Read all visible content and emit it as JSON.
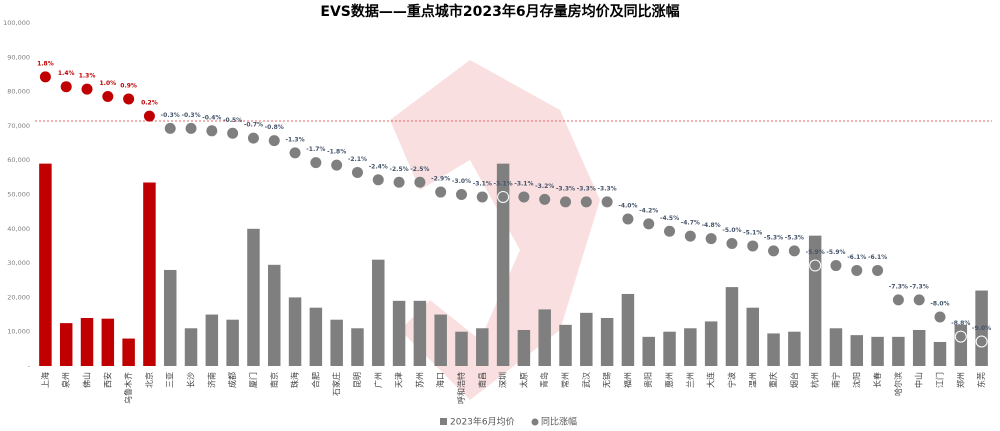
{
  "chart_data": {
    "type": "bar",
    "title": "EVS数据——重点城市2023年6月存量房均价及同比涨幅",
    "categories": [
      "上海",
      "泉州",
      "佛山",
      "西安",
      "乌鲁木齐",
      "北京",
      "三亚",
      "长沙",
      "济南",
      "成都",
      "厦门",
      "南京",
      "珠海",
      "合肥",
      "石家庄",
      "昆明",
      "广州",
      "天津",
      "苏州",
      "海口",
      "呼和浩特",
      "南昌",
      "深圳",
      "太原",
      "青岛",
      "常州",
      "武汉",
      "无锡",
      "福州",
      "贵阳",
      "惠州",
      "兰州",
      "大连",
      "宁波",
      "温州",
      "重庆",
      "烟台",
      "杭州",
      "南宁",
      "沈阳",
      "长春",
      "哈尔滨",
      "中山",
      "江门",
      "郑州",
      "东莞"
    ],
    "highlight_color": "#c00000",
    "series": [
      {
        "name": "2023年6月均价",
        "color": "#7f7f7f",
        "values": [
          59000,
          12500,
          14000,
          13800,
          8000,
          53500,
          28000,
          11000,
          15000,
          13500,
          40000,
          29500,
          20000,
          17000,
          13500,
          11000,
          31000,
          19000,
          19000,
          15000,
          10000,
          11000,
          59000,
          10500,
          16500,
          12000,
          15500,
          14000,
          21000,
          8500,
          10000,
          11000,
          13000,
          23000,
          17000,
          9500,
          10000,
          38000,
          11000,
          9000,
          8500,
          8500,
          10500,
          7000,
          12000,
          22000
        ]
      },
      {
        "name": "同比涨幅",
        "type": "scatter",
        "axis": "y2",
        "color": "#7f7f7f",
        "values": [
          1.8,
          1.4,
          1.3,
          1.0,
          0.9,
          0.2,
          -0.3,
          -0.3,
          -0.4,
          -0.5,
          -0.7,
          -0.8,
          -1.3,
          -1.7,
          -1.8,
          -2.1,
          -2.4,
          -2.5,
          -2.5,
          -2.9,
          -3.0,
          -3.1,
          -3.1,
          -3.1,
          -3.2,
          -3.3,
          -3.3,
          -3.3,
          -4.0,
          -4.2,
          -4.5,
          -4.7,
          -4.8,
          -5.0,
          -5.1,
          -5.3,
          -5.3,
          -5.9,
          -5.9,
          -6.1,
          -6.1,
          -7.3,
          -7.3,
          -8.0,
          -8.8,
          -9.0
        ],
        "value_labels": [
          "1.8%",
          "1.4%",
          "1.3%",
          "1.0%",
          "0.9%",
          "0.2%",
          "-0.3%",
          "-0.3%",
          "-0.4%",
          "-0.5%",
          "-0.7%",
          "-0.8%",
          "-1.3%",
          "-1.7%",
          "-1.8%",
          "-2.1%",
          "-2.4%",
          "-2.5%",
          "-2.5%",
          "-2.9%",
          "-3.0%",
          "-3.1%",
          "-3.1%",
          "-3.1%",
          "-3.2%",
          "-3.3%",
          "-3.3%",
          "-3.3%",
          "-4.0%",
          "-4.2%",
          "-4.5%",
          "-4.7%",
          "-4.8%",
          "-5.0%",
          "-5.1%",
          "-5.3%",
          "-5.3%",
          "-5.9%",
          "-5.9%",
          "-6.1%",
          "-6.1%",
          "-7.3%",
          "-7.3%",
          "-8.0%",
          "-8.8%",
          "-9.0%"
        ]
      }
    ],
    "ylim": [
      0,
      100000
    ],
    "yticks": [
      {
        "value": 0,
        "label": "-"
      },
      {
        "value": 10000,
        "label": "10,000"
      },
      {
        "value": 20000,
        "label": "20,000"
      },
      {
        "value": 30000,
        "label": "30,000"
      },
      {
        "value": 40000,
        "label": "40,000"
      },
      {
        "value": 50000,
        "label": "50,000"
      },
      {
        "value": 60000,
        "label": "60,000"
      },
      {
        "value": 70000,
        "label": "70,000"
      },
      {
        "value": 80000,
        "label": "80,000"
      },
      {
        "value": 90000,
        "label": "90,000"
      },
      {
        "value": 100000,
        "label": "100,000"
      }
    ],
    "y2lim": [
      -10,
      4
    ]
  }
}
